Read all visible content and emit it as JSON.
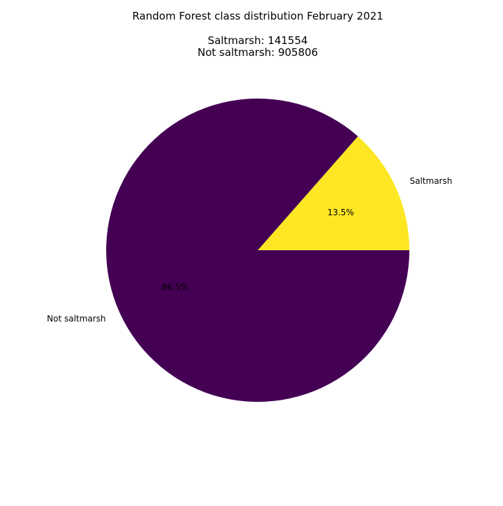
{
  "chart_data": {
    "type": "pie",
    "title": "Random Forest class distribution February 2021",
    "subtitle_lines": [
      "Saltmarsh: 141554",
      "Not saltmarsh: 905806"
    ],
    "slices": [
      {
        "label": "Saltmarsh",
        "value": 141554,
        "percent_label": "13.5%",
        "color": "#fde725"
      },
      {
        "label": "Not saltmarsh",
        "value": 905806,
        "percent_label": "86.5%",
        "color": "#440154"
      }
    ],
    "start_angle_deg": 0,
    "direction": "counterclockwise"
  }
}
